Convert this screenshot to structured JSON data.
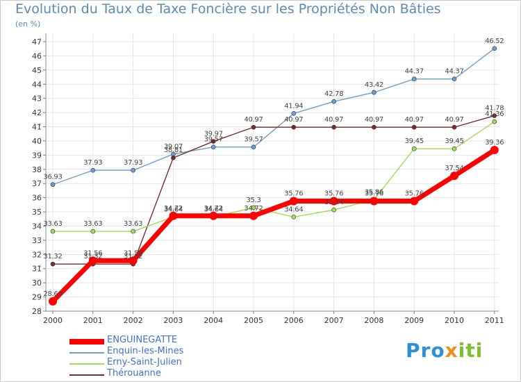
{
  "header": {
    "title": "Evolution du Taux de Taxe Foncière sur les Propriétés Non Bâties",
    "subtitle": "(en %)"
  },
  "logo": {
    "part1": "Pro",
    "part2": "x",
    "part3": "iti"
  },
  "chart_data": {
    "type": "line",
    "title": "Evolution du Taux de Taxe Foncière sur les Propriétés Non Bâties",
    "ylabel": "(en %)",
    "xlabel": "",
    "ylim": [
      28,
      47
    ],
    "grid": true,
    "legend": "bottom-left",
    "categories": [
      "2000",
      "2001",
      "2002",
      "2003",
      "2004",
      "2005",
      "2006",
      "2007",
      "2008",
      "2009",
      "2010",
      "2011"
    ],
    "yticks": [
      28,
      29,
      30,
      31,
      32,
      33,
      34,
      35,
      36,
      37,
      38,
      39,
      40,
      41,
      42,
      43,
      44,
      45,
      46,
      47
    ],
    "series": [
      {
        "name": "ENGUINEGATTE",
        "color": "#ff0000",
        "values": [
          28.69,
          31.56,
          31.56,
          34.72,
          34.72,
          34.72,
          35.76,
          35.76,
          35.76,
          35.76,
          37.54,
          39.36
        ],
        "labels": [
          "28.69",
          "31.56",
          "31.56",
          "34.72",
          "34.72",
          "34.72",
          "35.76",
          "35.76",
          "35.76",
          "35.76",
          "37.54",
          "39.36"
        ]
      },
      {
        "name": "Enquin-les-Mines",
        "color": "#6a9fd2",
        "values": [
          36.93,
          37.93,
          37.93,
          39.07,
          39.57,
          39.57,
          41.94,
          42.78,
          43.42,
          44.37,
          44.37,
          46.52
        ],
        "labels": [
          "36.93",
          "37.93",
          "37.93",
          "39.07",
          "39.57",
          "39.57",
          "41.94",
          "42.78",
          "43.42",
          "44.37",
          "44.37",
          "46.52"
        ]
      },
      {
        "name": "Erny-Saint-Julien",
        "color": "#9edc5a",
        "values": [
          33.63,
          33.63,
          33.63,
          34.64,
          34.64,
          35.3,
          34.64,
          35.14,
          35.86,
          39.45,
          39.45,
          41.36
        ],
        "labels": [
          "33.63",
          "33.63",
          "33.63",
          "34.64",
          "34.64",
          "35.3",
          "34.64",
          "35.14",
          "35.86",
          "39.45",
          "39.45",
          "41.36"
        ]
      },
      {
        "name": "Thérouanne",
        "color": "#7a2a2a",
        "values": [
          31.32,
          31.32,
          31.32,
          38.81,
          39.97,
          40.97,
          40.97,
          40.97,
          40.97,
          40.97,
          40.97,
          41.78
        ],
        "labels": [
          "31.32",
          "31.32",
          "31.32",
          "38.81",
          "39.97",
          "40.97",
          "40.97",
          "40.97",
          "40.97",
          "40.97",
          "40.97",
          "41.78"
        ]
      }
    ]
  }
}
